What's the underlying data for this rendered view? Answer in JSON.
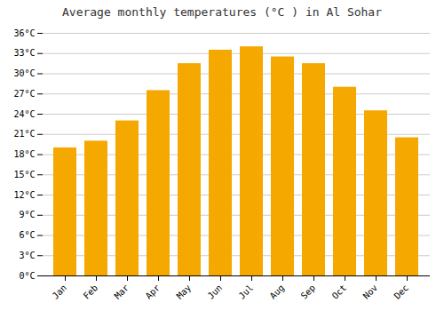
{
  "chart_data": {
    "type": "bar",
    "title": "Average monthly temperatures (°C ) in Al Sohar",
    "categories": [
      "Jan",
      "Feb",
      "Mar",
      "Apr",
      "May",
      "Jun",
      "Jul",
      "Aug",
      "Sep",
      "Oct",
      "Nov",
      "Dec"
    ],
    "values": [
      19.0,
      20.0,
      23.0,
      27.5,
      31.5,
      33.5,
      34.0,
      32.5,
      31.5,
      28.0,
      24.5,
      20.5
    ],
    "color": "#F5A800",
    "ylim": [
      0,
      36
    ],
    "yticks": [
      {
        "value": 0,
        "label": "0°C"
      },
      {
        "value": 3,
        "label": "3°C"
      },
      {
        "value": 6,
        "label": "6°C"
      },
      {
        "value": 9,
        "label": "9°C"
      },
      {
        "value": 12,
        "label": "12°C"
      },
      {
        "value": 15,
        "label": "15°C"
      },
      {
        "value": 18,
        "label": "18°C"
      },
      {
        "value": 21,
        "label": "21°C"
      },
      {
        "value": 24,
        "label": "24°C"
      },
      {
        "value": 27,
        "label": "27°C"
      },
      {
        "value": 30,
        "label": "30°C"
      },
      {
        "value": 33,
        "label": "33°C"
      },
      {
        "value": 36,
        "label": "36°C"
      }
    ],
    "grid": true
  }
}
